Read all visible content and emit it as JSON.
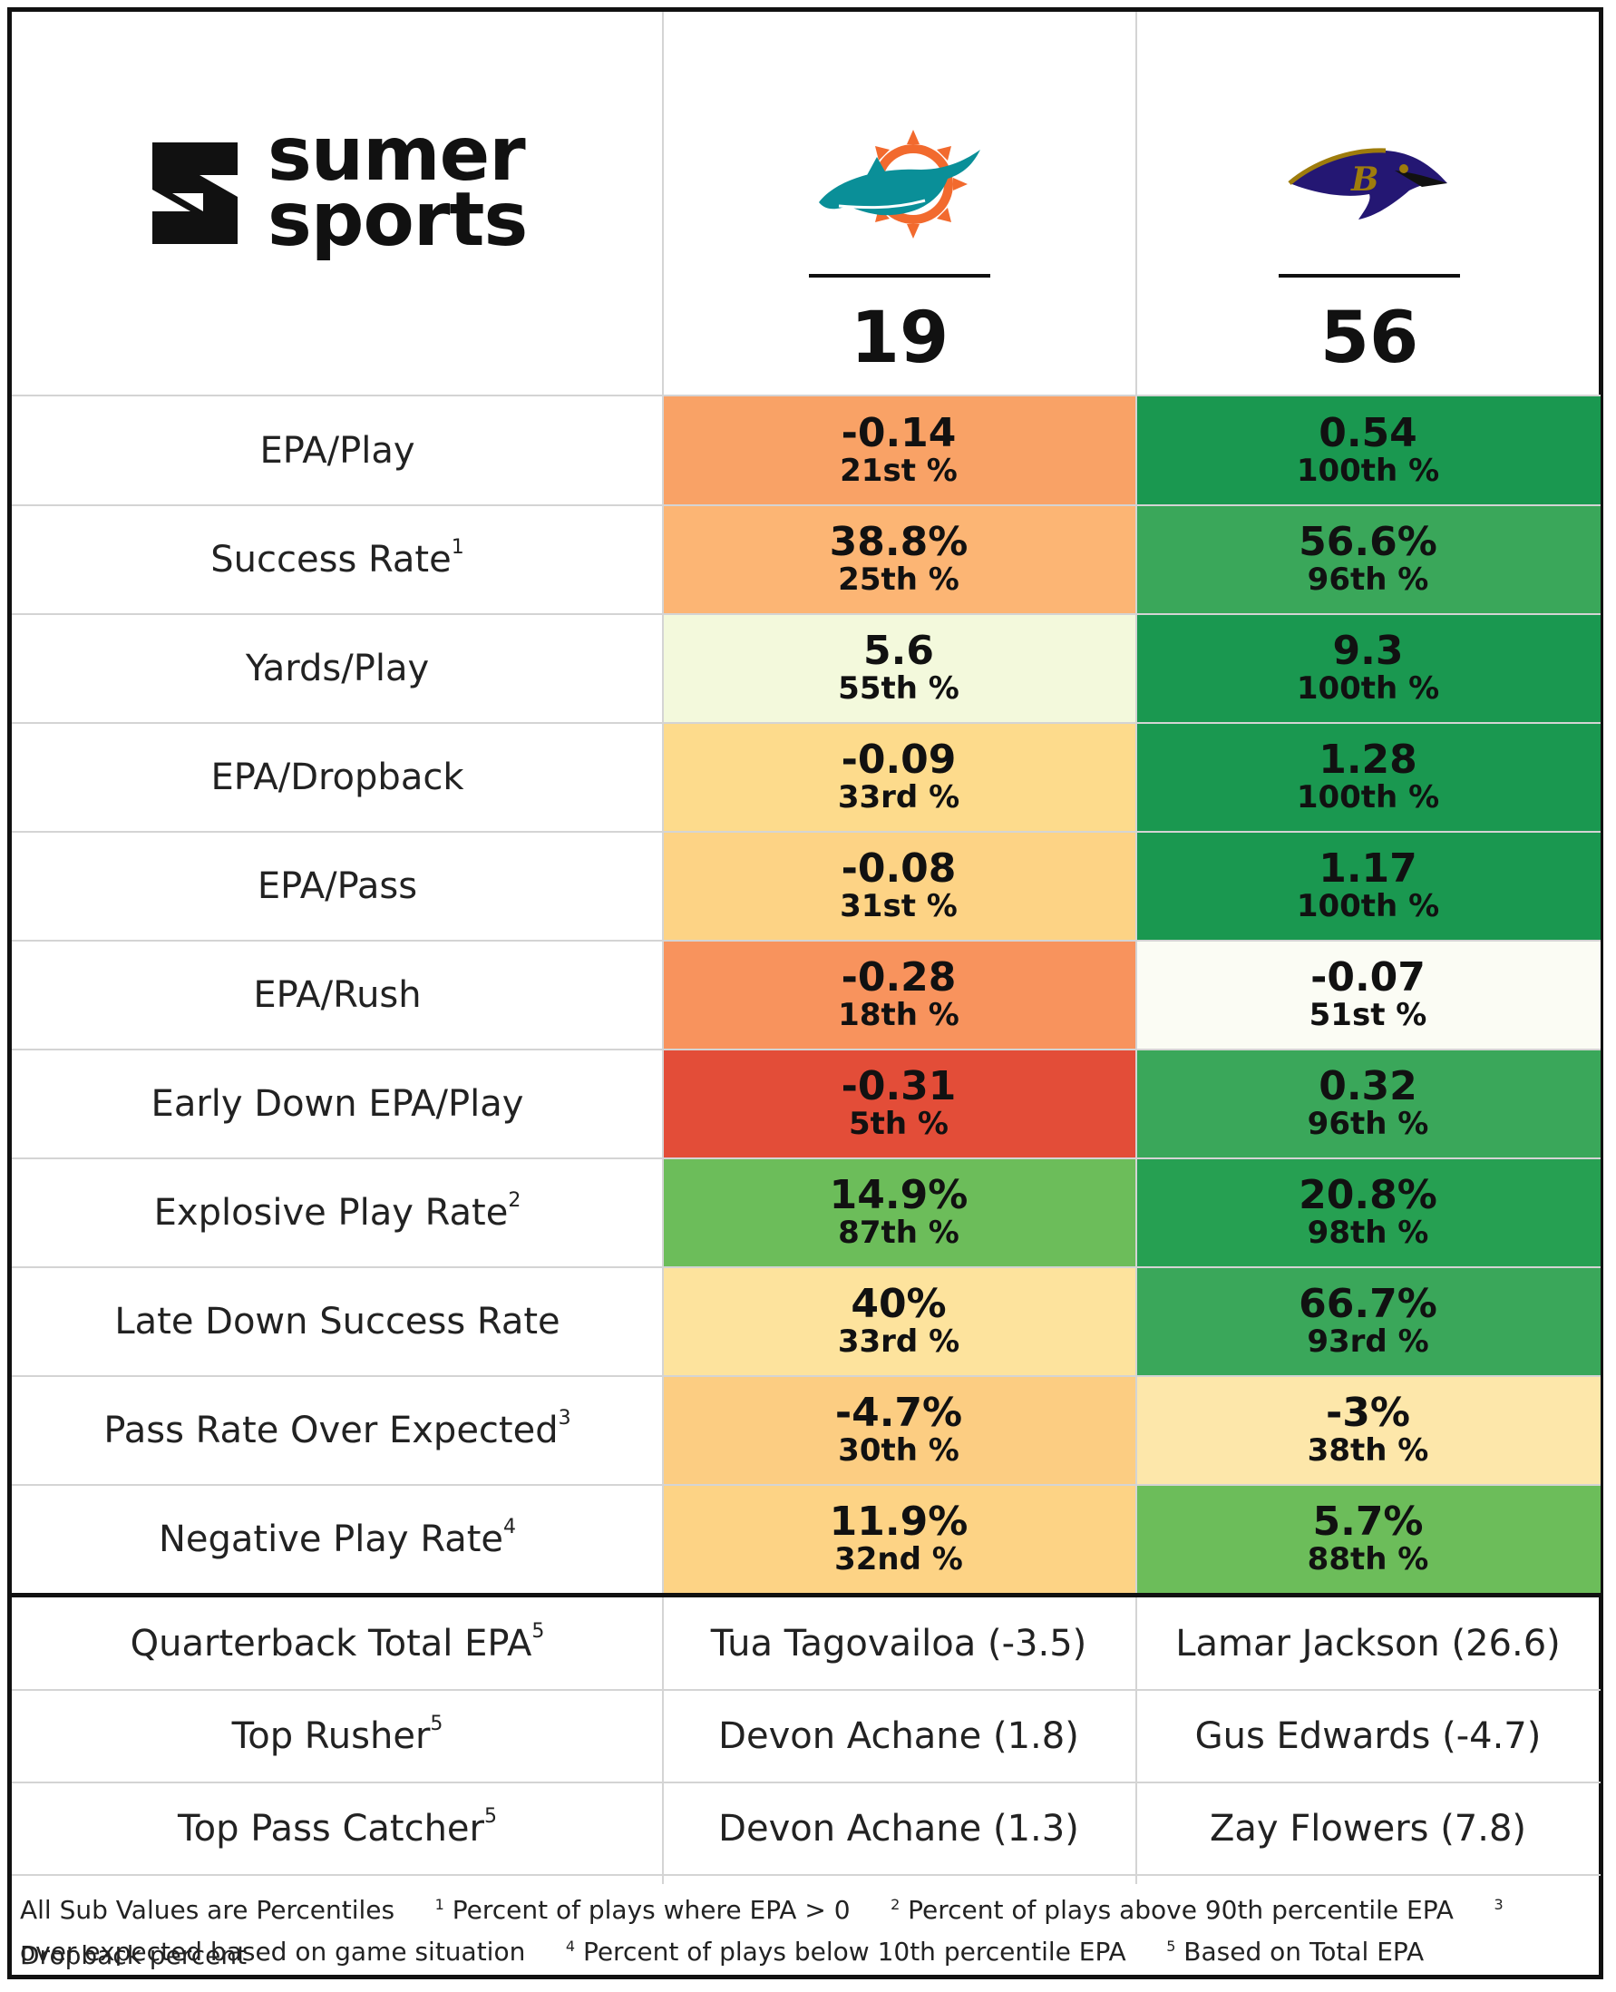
{
  "brand": {
    "line1": "sumer",
    "line2": "sports"
  },
  "teams": [
    {
      "score": "19",
      "logo": "dolphins-logo"
    },
    {
      "score": "56",
      "logo": "ravens-logo"
    }
  ],
  "metrics": [
    {
      "label": "EPA/Play",
      "sup": "",
      "cells": [
        {
          "value": "-0.14",
          "pct": "21st %",
          "color": "#f9a266"
        },
        {
          "value": "0.54",
          "pct": "100th %",
          "color": "#1a9850"
        }
      ]
    },
    {
      "label": "Success Rate",
      "sup": "1",
      "cells": [
        {
          "value": "38.8%",
          "pct": "25th %",
          "color": "#fcb574"
        },
        {
          "value": "56.6%",
          "pct": "96th %",
          "color": "#3aa75a"
        }
      ]
    },
    {
      "label": "Yards/Play",
      "sup": "",
      "cells": [
        {
          "value": "5.6",
          "pct": "55th %",
          "color": "#f3f9dc"
        },
        {
          "value": "9.3",
          "pct": "100th %",
          "color": "#1a9850"
        }
      ]
    },
    {
      "label": "EPA/Dropback",
      "sup": "",
      "cells": [
        {
          "value": "-0.09",
          "pct": "33rd %",
          "color": "#fddb8c"
        },
        {
          "value": "1.28",
          "pct": "100th %",
          "color": "#1a9850"
        }
      ]
    },
    {
      "label": "EPA/Pass",
      "sup": "",
      "cells": [
        {
          "value": "-0.08",
          "pct": "31st %",
          "color": "#fdd385"
        },
        {
          "value": "1.17",
          "pct": "100th %",
          "color": "#1a9850"
        }
      ]
    },
    {
      "label": "EPA/Rush",
      "sup": "",
      "cells": [
        {
          "value": "-0.28",
          "pct": "18th %",
          "color": "#f8935d"
        },
        {
          "value": "-0.07",
          "pct": "51st %",
          "color": "#fbfcf4"
        }
      ]
    },
    {
      "label": "Early Down EPA/Play",
      "sup": "",
      "cells": [
        {
          "value": "-0.31",
          "pct": "5th %",
          "color": "#e34d38"
        },
        {
          "value": "0.32",
          "pct": "96th %",
          "color": "#3aa75a"
        }
      ]
    },
    {
      "label": "Explosive Play Rate",
      "sup": "2",
      "cells": [
        {
          "value": "14.9%",
          "pct": "87th %",
          "color": "#6cbd5a"
        },
        {
          "value": "20.8%",
          "pct": "98th %",
          "color": "#26a052"
        }
      ]
    },
    {
      "label": "Late Down Success Rate",
      "sup": "",
      "cells": [
        {
          "value": "40%",
          "pct": "33rd %",
          "color": "#fde39d"
        },
        {
          "value": "66.7%",
          "pct": "93rd %",
          "color": "#3aa75a"
        }
      ]
    },
    {
      "label": "Pass Rate Over Expected",
      "sup": "3",
      "cells": [
        {
          "value": "-4.7%",
          "pct": "30th %",
          "color": "#fccd82"
        },
        {
          "value": "-3%",
          "pct": "38th %",
          "color": "#fde7aa"
        }
      ]
    },
    {
      "label": "Negative Play Rate",
      "sup": "4",
      "cells": [
        {
          "value": "11.9%",
          "pct": "32nd %",
          "color": "#fdd385"
        },
        {
          "value": "5.7%",
          "pct": "88th %",
          "color": "#6cbd5a"
        }
      ]
    }
  ],
  "players": [
    {
      "label": "Quarterback Total EPA",
      "sup": "5",
      "cells": [
        "Tua Tagovailoa (-3.5)",
        "Lamar Jackson (26.6)"
      ]
    },
    {
      "label": "Top Rusher",
      "sup": "5",
      "cells": [
        "Devon Achane (1.8)",
        "Gus Edwards (-4.7)"
      ]
    },
    {
      "label": "Top Pass Catcher",
      "sup": "5",
      "cells": [
        "Devon Achane (1.3)",
        "Zay Flowers (7.8)"
      ]
    }
  ],
  "footnotes": {
    "intro": "All Sub Values are Percentiles",
    "n1_mark": "1",
    "n1": " Percent of plays where EPA > 0",
    "n2_mark": "2",
    "n2": " Percent of plays above 90th percentile EPA",
    "n3_mark": "3",
    "n3a": " Dropback percent",
    "n3b": "over expected based on game situation",
    "n4_mark": "4",
    "n4": " Percent of plays below 10th percentile EPA",
    "n5_mark": "5",
    "n5": " Based on Total EPA"
  }
}
